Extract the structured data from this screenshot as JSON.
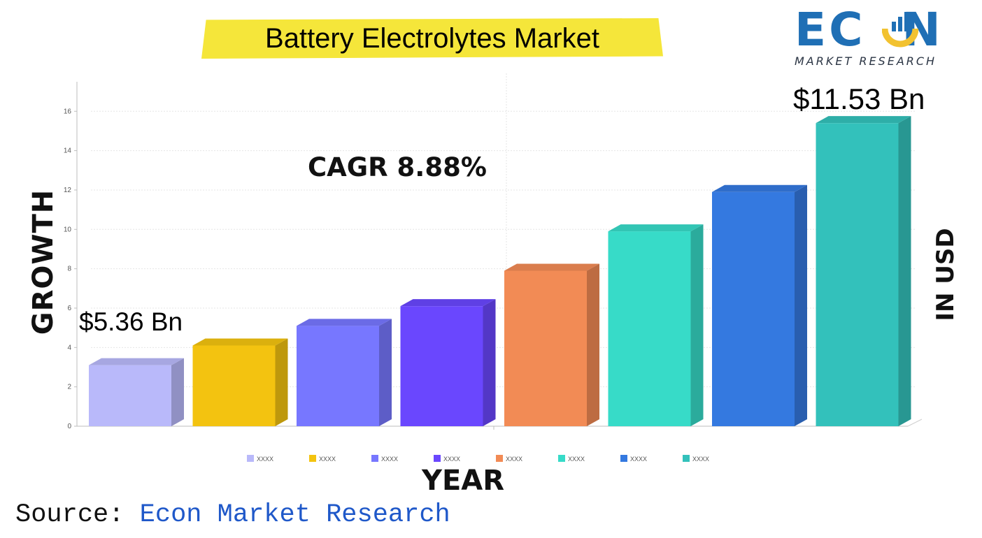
{
  "title": "Battery Electrolytes Market",
  "logo": {
    "wordmark": "ECON",
    "tagline": "MARKET RESEARCH"
  },
  "annotations": {
    "cagr": "CAGR 8.88%",
    "start_value": "$5.36 Bn",
    "end_value": "$11.53 Bn"
  },
  "source": {
    "label": "Source:",
    "name": "Econ Market Research"
  },
  "colors": {
    "title_highlight": "#f5e63a",
    "logo_blue": "#1f6fb5",
    "logo_yellow": "#f2c230",
    "source_link": "#1f58c9"
  },
  "chart_data": {
    "type": "bar",
    "title": "Battery Electrolytes Market",
    "xlabel": "YEAR",
    "ylabel": "GROWTH",
    "ylabel_right": "IN USD",
    "ylim": [
      0,
      17.5
    ],
    "yticks": [
      0,
      2,
      4,
      6,
      8,
      10,
      12,
      14,
      16
    ],
    "grid": true,
    "legend_position": "bottom",
    "categories": [
      "XXXX",
      "XXXX",
      "XXXX",
      "XXXX",
      "XXXX",
      "XXXX",
      "XXXX",
      "XXXX"
    ],
    "values": [
      3.1,
      4.1,
      5.1,
      6.1,
      7.9,
      9.9,
      11.9,
      15.4
    ],
    "colors": [
      "#b9b9fa",
      "#f3c310",
      "#7777ff",
      "#6a47fe",
      "#f28b55",
      "#37dbc8",
      "#3479e0",
      "#33c1bb"
    ]
  }
}
